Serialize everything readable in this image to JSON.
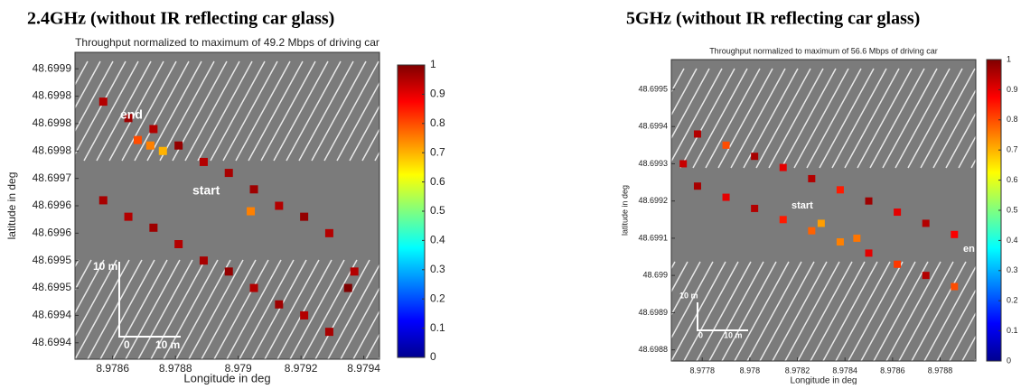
{
  "chart_data": [
    {
      "type": "scatter",
      "title": "2.4GHz (without IR reflecting car glass)",
      "subtitle": "Throughput normalized to maximum of 49.2 Mbps of driving car",
      "xlabel": "Longitude in deg",
      "ylabel": "latitude in deg",
      "colormap": "jet",
      "xlim": [
        8.97848,
        8.97945
      ],
      "ylim": [
        48.69937,
        48.69993
      ],
      "xticks": [
        8.9786,
        8.9788,
        8.979,
        8.9792,
        8.9794
      ],
      "yticks": [
        {
          "value": 48.6999,
          "label": "48.6999"
        },
        {
          "value": 48.69985,
          "label": "48.6998"
        },
        {
          "value": 48.6998,
          "label": "48.6998"
        },
        {
          "value": 48.69975,
          "label": "48.6998"
        },
        {
          "value": 48.6997,
          "label": "48.6997"
        },
        {
          "value": 48.69965,
          "label": "48.6996"
        },
        {
          "value": 48.6996,
          "label": "48.6996"
        },
        {
          "value": 48.69955,
          "label": "48.6995"
        },
        {
          "value": 48.6995,
          "label": "48.6995"
        },
        {
          "value": 48.69945,
          "label": "48.6994"
        },
        {
          "value": 48.6994,
          "label": "48.6994"
        }
      ],
      "clim": [
        0,
        1
      ],
      "cticks": [
        0,
        0.1,
        0.2,
        0.3,
        0.4,
        0.5,
        0.6,
        0.7,
        0.8,
        0.9,
        1
      ],
      "annotations": [
        "end",
        "start",
        "10 m",
        "0",
        "10 m"
      ],
      "x": [
        8.97857,
        8.97865,
        8.97873,
        8.97881,
        8.97889,
        8.97897,
        8.97905,
        8.97913,
        8.97921,
        8.97929,
        8.97857,
        8.97865,
        8.97873,
        8.97881,
        8.97889,
        8.97897,
        8.97905,
        8.97913,
        8.97921,
        8.97929,
        8.97868,
        8.97872,
        8.97876,
        8.97904,
        8.97935,
        8.97937
      ],
      "y": [
        48.69984,
        48.69981,
        48.69979,
        48.69976,
        48.69973,
        48.69971,
        48.69968,
        48.69965,
        48.69963,
        48.6996,
        48.69966,
        48.69963,
        48.69961,
        48.69958,
        48.69955,
        48.69953,
        48.6995,
        48.69947,
        48.69945,
        48.69942,
        48.69977,
        48.69976,
        48.69975,
        48.69964,
        48.6995,
        48.69953
      ],
      "values": [
        0.95,
        0.97,
        0.95,
        0.98,
        0.95,
        0.96,
        0.97,
        0.95,
        0.98,
        0.95,
        0.96,
        0.95,
        0.97,
        0.95,
        0.96,
        0.98,
        0.95,
        0.97,
        0.95,
        0.96,
        0.8,
        0.75,
        0.7,
        0.75,
        1,
        0.95
      ]
    },
    {
      "type": "scatter",
      "title": "5GHz (without IR reflecting car glass)",
      "subtitle": "Throughput normalized to maximum of 56.6 Mbps of driving car",
      "xlabel": "Longitude in deg",
      "ylabel": "latitude in deg",
      "colormap": "jet",
      "xlim": [
        8.97767,
        8.97895
      ],
      "ylim": [
        48.69877,
        48.69958
      ],
      "xticks": [
        8.9778,
        8.978,
        8.9782,
        8.9784,
        8.9786,
        8.9788
      ],
      "yticks": [
        48.6995,
        48.6994,
        48.6993,
        48.6992,
        48.6991,
        48.699,
        48.6989,
        48.6988
      ],
      "clim": [
        0,
        1
      ],
      "cticks": [
        0,
        0.1,
        0.2,
        0.3,
        0.4,
        0.5,
        0.6,
        0.7,
        0.8,
        0.9,
        1
      ],
      "annotations": [
        "en",
        "start",
        "10 m",
        "0",
        "10 m"
      ],
      "x": [
        8.97778,
        8.9779,
        8.97802,
        8.97814,
        8.97826,
        8.97838,
        8.9785,
        8.97862,
        8.97874,
        8.97886,
        8.97778,
        8.9779,
        8.97802,
        8.97814,
        8.97826,
        8.97838,
        8.9785,
        8.97862,
        8.97874,
        8.97886,
        8.97772,
        8.9783,
        8.97845
      ],
      "y": [
        48.69938,
        48.69935,
        48.69932,
        48.69929,
        48.69926,
        48.69923,
        48.6992,
        48.69917,
        48.69914,
        48.69911,
        48.69924,
        48.69921,
        48.69918,
        48.69915,
        48.69912,
        48.69909,
        48.69906,
        48.69903,
        48.699,
        48.69897,
        48.6993,
        48.69914,
        48.6991
      ],
      "values": [
        0.95,
        0.8,
        0.96,
        0.9,
        0.95,
        0.85,
        0.97,
        0.9,
        0.95,
        0.88,
        0.96,
        0.9,
        0.95,
        0.85,
        0.78,
        0.75,
        0.9,
        0.82,
        0.95,
        0.8,
        0.93,
        0.72,
        0.76
      ]
    }
  ]
}
